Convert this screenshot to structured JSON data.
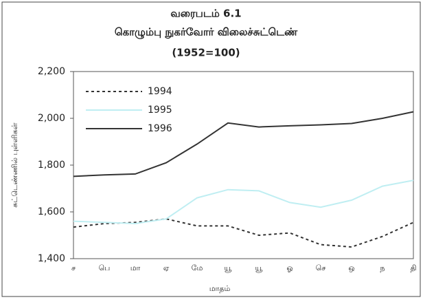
{
  "chart_data": {
    "type": "line",
    "title": [
      "வரைபடம் 6.1",
      "கொழும்பு நுகர்வோர் விலைச்சுட்டெண்",
      "(1952=100)"
    ],
    "x_label": "மாதம்",
    "y_label": "சுட்டெண்ணில் புள்ளிகள்",
    "categories": [
      "ச",
      "பெ",
      "மா",
      "ஏ",
      "மே",
      "யூ",
      "யூ",
      "ஓ",
      "செ",
      "ஒ",
      "ந",
      "தி"
    ],
    "series": [
      {
        "name": "1994",
        "color": "#333333",
        "style": "dotted",
        "values": [
          1535,
          1550,
          1555,
          1570,
          1540,
          1540,
          1500,
          1510,
          1460,
          1450,
          1495,
          1555
        ]
      },
      {
        "name": "1995",
        "color": "#bfeef2",
        "style": "solid",
        "values": [
          1560,
          1555,
          1550,
          1570,
          1660,
          1695,
          1690,
          1640,
          1620,
          1650,
          1710,
          1735
        ]
      },
      {
        "name": "1996",
        "color": "#333333",
        "style": "solid",
        "values": [
          1752,
          1758,
          1762,
          1810,
          1890,
          1980,
          1963,
          1968,
          1972,
          1978,
          2000,
          2028
        ]
      }
    ],
    "ylim": [
      1400,
      2200
    ],
    "yticks": [
      {
        "value": 1400,
        "label": "1,400"
      },
      {
        "value": 1600,
        "label": "1,600"
      },
      {
        "value": 1800,
        "label": "1,800"
      },
      {
        "value": 2000,
        "label": "2,000"
      },
      {
        "value": 2200,
        "label": "2,200"
      }
    ],
    "legend": "upper left"
  }
}
